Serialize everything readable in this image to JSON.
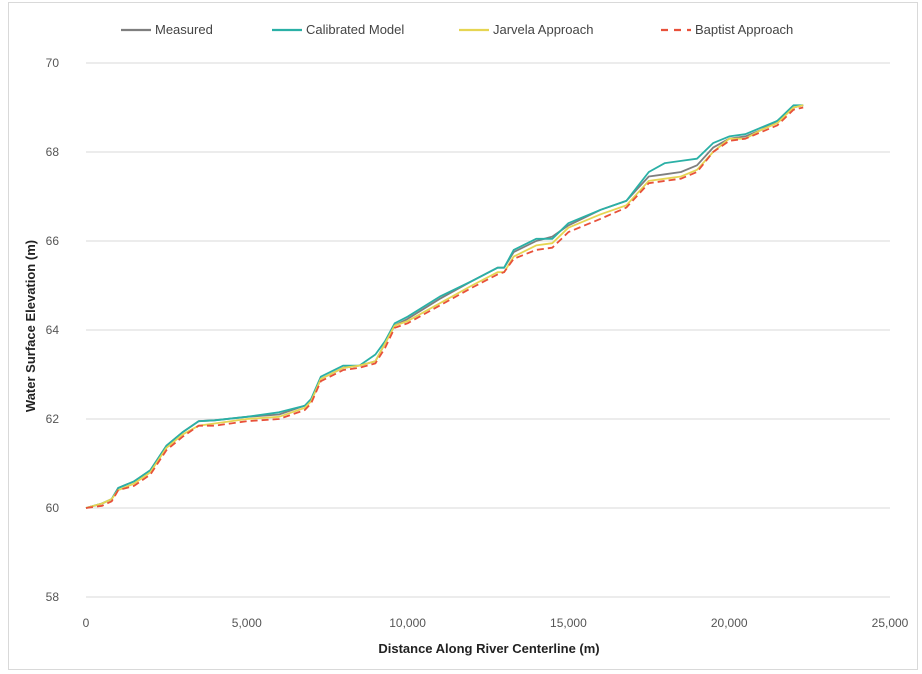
{
  "chart_data": {
    "type": "line",
    "title": "",
    "xlabel": "Distance Along River Centerline (m)",
    "ylabel": "Water Surface Elevation (m)",
    "xlim": [
      0,
      25000
    ],
    "ylim": [
      58,
      70
    ],
    "x_ticks": [
      {
        "value": 0,
        "label": "0"
      },
      {
        "value": 5000,
        "label": "5,000"
      },
      {
        "value": 10000,
        "label": "10,000"
      },
      {
        "value": 15000,
        "label": "15,000"
      },
      {
        "value": 20000,
        "label": "20,000"
      },
      {
        "value": 25000,
        "label": "25,000"
      }
    ],
    "y_ticks": [
      {
        "value": 58,
        "label": "58"
      },
      {
        "value": 60,
        "label": "60"
      },
      {
        "value": 62,
        "label": "62"
      },
      {
        "value": 64,
        "label": "64"
      },
      {
        "value": 66,
        "label": "66"
      },
      {
        "value": 68,
        "label": "68"
      },
      {
        "value": 70,
        "label": "70"
      }
    ],
    "grid": "horizontal",
    "legend_position": "top",
    "x": [
      0,
      500,
      800,
      1000,
      1500,
      2000,
      2500,
      3000,
      3500,
      4000,
      5000,
      6000,
      6800,
      7000,
      7300,
      8000,
      8500,
      9000,
      9300,
      9600,
      10000,
      11000,
      12000,
      12800,
      13000,
      13300,
      14000,
      14500,
      15000,
      16000,
      16800,
      17500,
      18000,
      18500,
      19000,
      19500,
      20000,
      20500,
      21000,
      21500,
      22000,
      22300
    ],
    "series": [
      {
        "name": "Measured",
        "color": "#7f7f7f",
        "dash": "solid",
        "values": [
          60.0,
          60.1,
          60.2,
          60.45,
          60.6,
          60.85,
          61.4,
          61.7,
          61.95,
          61.97,
          62.05,
          62.1,
          62.3,
          62.4,
          62.9,
          63.15,
          63.2,
          63.3,
          63.7,
          64.1,
          64.25,
          64.7,
          65.1,
          65.4,
          65.4,
          65.75,
          66.0,
          66.1,
          66.35,
          66.7,
          66.9,
          67.45,
          67.5,
          67.55,
          67.7,
          68.1,
          68.3,
          68.35,
          68.5,
          68.7,
          69.0,
          69.05
        ]
      },
      {
        "name": "Calibrated Model",
        "color": "#2ab0a6",
        "dash": "solid",
        "values": [
          60.0,
          60.1,
          60.2,
          60.45,
          60.6,
          60.85,
          61.4,
          61.7,
          61.95,
          61.97,
          62.05,
          62.15,
          62.3,
          62.45,
          62.95,
          63.2,
          63.2,
          63.45,
          63.75,
          64.15,
          64.3,
          64.75,
          65.1,
          65.4,
          65.4,
          65.8,
          66.05,
          66.05,
          66.4,
          66.7,
          66.9,
          67.55,
          67.75,
          67.8,
          67.85,
          68.2,
          68.35,
          68.4,
          68.55,
          68.7,
          69.05,
          69.05
        ]
      },
      {
        "name": "Jarvela Approach",
        "color": "#e6d552",
        "dash": "solid",
        "values": [
          60.0,
          60.1,
          60.2,
          60.4,
          60.55,
          60.8,
          61.35,
          61.65,
          61.85,
          61.9,
          62.0,
          62.05,
          62.25,
          62.4,
          62.9,
          63.15,
          63.2,
          63.3,
          63.7,
          64.1,
          64.2,
          64.6,
          65.0,
          65.3,
          65.3,
          65.65,
          65.9,
          65.95,
          66.3,
          66.6,
          66.8,
          67.35,
          67.4,
          67.45,
          67.6,
          68.0,
          68.3,
          68.3,
          68.5,
          68.65,
          69.0,
          69.05
        ]
      },
      {
        "name": "Baptist Approach",
        "color": "#e8513a",
        "dash": "dashed",
        "values": [
          60.0,
          60.05,
          60.15,
          60.4,
          60.5,
          60.75,
          61.3,
          61.6,
          61.85,
          61.85,
          61.95,
          62.0,
          62.2,
          62.35,
          62.85,
          63.1,
          63.15,
          63.25,
          63.6,
          64.05,
          64.15,
          64.55,
          64.95,
          65.25,
          65.3,
          65.6,
          65.8,
          65.85,
          66.2,
          66.5,
          66.75,
          67.3,
          67.35,
          67.4,
          67.55,
          68.0,
          68.25,
          68.3,
          68.45,
          68.6,
          68.95,
          69.0
        ]
      }
    ]
  }
}
